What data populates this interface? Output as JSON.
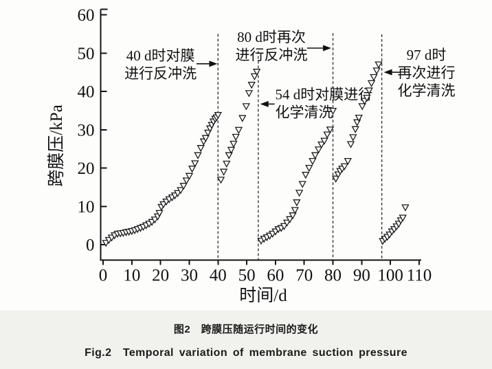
{
  "figure": {
    "caption_cn": "图2　跨膜压随运行时间的变化",
    "caption_en": "Fig.2　Temporal variation of membrane suction pressure"
  },
  "chart_data": {
    "type": "scatter",
    "title": "",
    "xlabel": "时间/d",
    "ylabel": "跨膜压/kPa",
    "xlim": [
      0,
      110
    ],
    "ylim": [
      0,
      60
    ],
    "x_ticks": [
      0,
      10,
      20,
      30,
      40,
      50,
      60,
      70,
      80,
      90,
      100,
      110
    ],
    "y_ticks": [
      0,
      10,
      20,
      30,
      40,
      50,
      60
    ],
    "grid": false,
    "legend_position": "none",
    "marker": "open-down-triangle",
    "marker_color": "#1c1c1c",
    "axis_color": "#141414",
    "series": [
      {
        "name": "跨膜压",
        "segments": [
          [
            [
              1,
              0.5
            ],
            [
              2,
              1.3
            ],
            [
              3,
              1.9
            ],
            [
              4,
              2.5
            ],
            [
              5,
              2.9
            ],
            [
              6,
              3.0
            ],
            [
              7,
              3.1
            ],
            [
              8,
              3.3
            ],
            [
              9,
              3.4
            ],
            [
              10,
              3.6
            ],
            [
              11,
              3.8
            ],
            [
              12,
              4.1
            ],
            [
              13,
              4.4
            ],
            [
              14,
              4.7
            ],
            [
              15,
              5.1
            ],
            [
              16,
              5.5
            ],
            [
              17,
              6.0
            ],
            [
              18,
              6.6
            ],
            [
              19,
              7.4
            ],
            [
              19.6,
              8.3
            ],
            [
              20.3,
              9.9
            ],
            [
              21,
              10.6
            ],
            [
              22,
              11.3
            ],
            [
              23,
              11.9
            ],
            [
              24,
              12.4
            ],
            [
              25,
              12.9
            ],
            [
              26,
              13.5
            ],
            [
              27,
              14.3
            ],
            [
              28,
              15.4
            ],
            [
              29,
              16.8
            ],
            [
              30,
              18.0
            ],
            [
              31,
              19.9
            ],
            [
              32,
              21.3
            ],
            [
              33,
              23.4
            ],
            [
              34,
              25.3
            ],
            [
              35,
              27.0
            ],
            [
              35.7,
              27.9
            ],
            [
              36.5,
              29.3
            ],
            [
              37.2,
              30.4
            ],
            [
              37.8,
              31.3
            ],
            [
              38.4,
              32.2
            ],
            [
              39,
              32.9
            ],
            [
              39.5,
              33.3
            ],
            [
              40,
              33.9
            ]
          ],
          [
            [
              41,
              17.0
            ],
            [
              42,
              19.1
            ],
            [
              43,
              21.2
            ],
            [
              43.8,
              23.4
            ],
            [
              44.6,
              24.8
            ],
            [
              45.4,
              26.4
            ],
            [
              46.2,
              28.2
            ],
            [
              47.2,
              30.0
            ],
            [
              48.5,
              33.1
            ],
            [
              49.8,
              36.2
            ],
            [
              50.8,
              39.6
            ],
            [
              51.7,
              41.8
            ],
            [
              52.7,
              44.0
            ],
            [
              53.5,
              45.2
            ]
          ],
          [
            [
              55,
              1.1
            ],
            [
              56,
              1.6
            ],
            [
              57,
              2.0
            ],
            [
              58,
              2.4
            ],
            [
              59,
              2.9
            ],
            [
              60,
              3.5
            ],
            [
              61,
              4.1
            ],
            [
              62,
              4.4
            ],
            [
              63,
              4.9
            ],
            [
              64,
              5.8
            ],
            [
              65,
              6.7
            ],
            [
              66,
              7.7
            ],
            [
              66.8,
              9.1
            ],
            [
              67.4,
              11.1
            ],
            [
              68.3,
              13.6
            ],
            [
              69.4,
              15.9
            ],
            [
              70.5,
              18.3
            ],
            [
              71.7,
              20.1
            ],
            [
              72.9,
              21.9
            ],
            [
              73.8,
              23.4
            ],
            [
              75,
              24.9
            ],
            [
              76,
              26.2
            ],
            [
              77,
              27.2
            ],
            [
              78,
              28.8
            ],
            [
              79,
              30.1
            ],
            [
              80,
              35.0
            ]
          ],
          [
            [
              81,
              17.3
            ],
            [
              81.8,
              18.4
            ],
            [
              82.5,
              19.3
            ],
            [
              83.2,
              19.9
            ],
            [
              84,
              20.5
            ],
            [
              85.2,
              21.9
            ],
            [
              86.2,
              26.3
            ],
            [
              87,
              28.1
            ],
            [
              87.8,
              30.2
            ],
            [
              88.4,
              32.0
            ],
            [
              89,
              33.2
            ],
            [
              90.2,
              36.2
            ],
            [
              91,
              37.6
            ],
            [
              91.8,
              38.4
            ],
            [
              92.6,
              40.3
            ],
            [
              93.4,
              42.2
            ],
            [
              94.2,
              43.8
            ],
            [
              95.2,
              45.5
            ],
            [
              95.9,
              47.1
            ]
          ],
          [
            [
              97.3,
              1.0
            ],
            [
              98.1,
              1.6
            ],
            [
              98.9,
              2.1
            ],
            [
              99.7,
              2.7
            ],
            [
              100.5,
              3.5
            ],
            [
              101.3,
              4.1
            ],
            [
              102.1,
              4.8
            ],
            [
              102.9,
              5.5
            ],
            [
              103.6,
              6.4
            ],
            [
              104.3,
              7.1
            ],
            [
              105.2,
              9.8
            ]
          ]
        ]
      }
    ],
    "event_lines": [
      {
        "id": "event-line-40d",
        "day": 40,
        "top_kpa": 55.0,
        "style": "dashed"
      },
      {
        "id": "event-line-54d",
        "day": 54,
        "top_kpa": 50.5,
        "style": "dashed"
      },
      {
        "id": "event-line-80d",
        "day": 80,
        "top_kpa": 55.2,
        "style": "dashed"
      },
      {
        "id": "event-line-97d",
        "day": 97,
        "top_kpa": 54.9,
        "style": "dashed"
      }
    ],
    "annotations": [
      {
        "id": "backwash-40d",
        "lines": [
          "40 d时对膜",
          "进行反冲洗"
        ],
        "align": "center",
        "day": 20,
        "kpa": 47.0,
        "arrow": {
          "from_day": 32.5,
          "to_day": 39.8,
          "kpa": 47.2
        }
      },
      {
        "id": "backwash-80d",
        "lines": [
          "80 d时再次",
          "进行反冲洗"
        ],
        "align": "center",
        "day": 58.6,
        "kpa": 51.8,
        "arrow": {
          "from_day": 71.0,
          "to_day": 79.4,
          "kpa": 51.3
        }
      },
      {
        "id": "chemclean-54d",
        "lines": [
          "54 d时对膜进行",
          "化学清洗"
        ],
        "align": "left",
        "day": 59.9,
        "kpa": 36.9,
        "arrow": {
          "from_day": 59.7,
          "to_day": 54.7,
          "kpa": 36.7
        }
      },
      {
        "id": "chemclean-97d",
        "lines": [
          "97 d时",
          "再次进行",
          "化学清洗"
        ],
        "align": "center",
        "day": 112.5,
        "kpa": 44.8,
        "arrow": {
          "from_day": 103.6,
          "to_day": 97.7,
          "kpa": 45.0
        }
      }
    ]
  }
}
